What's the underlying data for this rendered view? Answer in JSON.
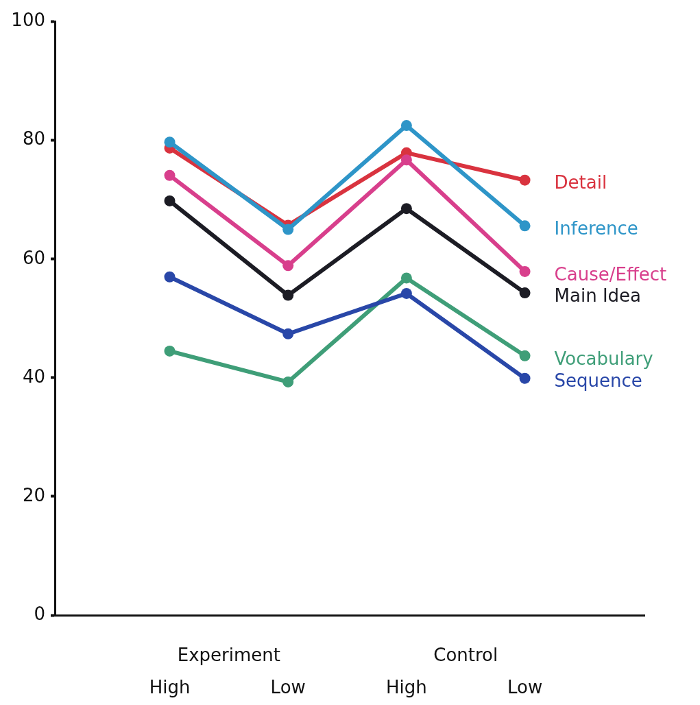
{
  "chart_data": {
    "type": "line",
    "categories": [
      "High",
      "Low",
      "High",
      "Low"
    ],
    "series": [
      {
        "name": "Detail",
        "color": "#d9333f",
        "values": [
          78.7,
          65.7,
          77.9,
          73.3
        ]
      },
      {
        "name": "Inference",
        "color": "#2e95c8",
        "values": [
          79.7,
          65.0,
          82.5,
          65.6
        ]
      },
      {
        "name": "Cause/Effect",
        "color": "#d83f8c",
        "values": [
          74.1,
          58.9,
          76.7,
          57.9
        ]
      },
      {
        "name": "Main Idea",
        "color": "#1c1c24",
        "values": [
          69.8,
          53.9,
          68.5,
          54.3
        ]
      },
      {
        "name": "Vocabulary",
        "color": "#3f9e78",
        "values": [
          44.5,
          39.3,
          56.8,
          43.7
        ]
      },
      {
        "name": "Sequence",
        "color": "#2947a8",
        "values": [
          57.0,
          47.4,
          54.2,
          39.9
        ]
      }
    ],
    "ylim": [
      0,
      100
    ],
    "yticks": [
      0,
      20,
      40,
      60,
      80,
      100
    ],
    "grid": false,
    "legend": false,
    "marker": "circle",
    "line_style": "solid",
    "annotations": [
      "Experiment",
      "Control"
    ]
  }
}
